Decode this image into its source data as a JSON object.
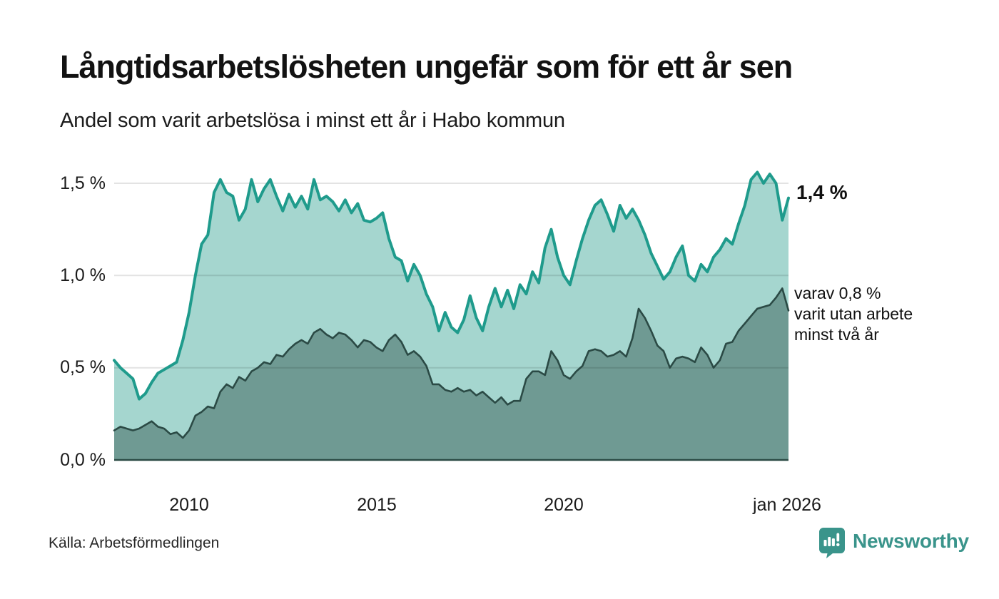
{
  "header": {
    "title": "Långtidsarbetslösheten ungefär som för ett år sen",
    "subtitle": "Andel som varit arbetslösa i minst ett år i Habo kommun"
  },
  "annotations": {
    "latest_total": "1,4 %",
    "two_year_lines": [
      "varav 0,8 %",
      "varit utan arbete",
      "minst två år"
    ]
  },
  "footer": {
    "source": "Källa: Arbetsförmedlingen",
    "brand": "Newsworthy"
  },
  "colors": {
    "one_year_line": "#1f9b8c",
    "one_year_fill": "#a5d6cf",
    "two_year_line": "#2b4a45",
    "two_year_fill": "#6f9a93",
    "grid": "rgba(0,0,0,0.11)",
    "axis": "#2b4a45",
    "brand": "#3a948b",
    "text": "#1a1a1a"
  },
  "chart_data": {
    "type": "area",
    "title": "Långtidsarbetslösheten ungefär som för ett år sen",
    "subtitle": "Andel som varit arbetslösa i minst ett år i Habo kommun",
    "source": "Arbetsförmedlingen",
    "x_unit": "decimal_year",
    "x_start": 2008.0,
    "x_end": 2026.0,
    "x_step": 0.1666667,
    "xlim": [
      2008,
      2026
    ],
    "ylim": [
      0,
      1.6
    ],
    "grid": true,
    "legend_position": "right-annotations",
    "x_ticks": [
      {
        "x": 2010,
        "label": "2010"
      },
      {
        "x": 2015,
        "label": "2015"
      },
      {
        "x": 2020,
        "label": "2020"
      },
      {
        "x": 2026,
        "label": "jan 2026"
      }
    ],
    "y_ticks": [
      {
        "y": 0.0,
        "label": "0,0 %"
      },
      {
        "y": 0.5,
        "label": "0,5 %"
      },
      {
        "y": 1.0,
        "label": "1,0 %"
      },
      {
        "y": 1.5,
        "label": "1,5 %"
      }
    ],
    "series": [
      {
        "name": "Andel arbetslösa minst ett år",
        "latest_value": 1.4,
        "latest_label": "1,4 %",
        "values": [
          0.54,
          0.5,
          0.47,
          0.44,
          0.33,
          0.36,
          0.42,
          0.47,
          0.49,
          0.51,
          0.53,
          0.65,
          0.8,
          1.0,
          1.17,
          1.22,
          1.45,
          1.52,
          1.45,
          1.43,
          1.3,
          1.36,
          1.52,
          1.4,
          1.47,
          1.52,
          1.43,
          1.35,
          1.44,
          1.37,
          1.43,
          1.36,
          1.52,
          1.41,
          1.43,
          1.4,
          1.35,
          1.41,
          1.34,
          1.39,
          1.3,
          1.29,
          1.31,
          1.34,
          1.2,
          1.1,
          1.08,
          0.97,
          1.06,
          1.0,
          0.9,
          0.83,
          0.7,
          0.8,
          0.72,
          0.69,
          0.76,
          0.89,
          0.77,
          0.7,
          0.83,
          0.93,
          0.83,
          0.92,
          0.82,
          0.95,
          0.9,
          1.02,
          0.96,
          1.15,
          1.25,
          1.1,
          1.0,
          0.95,
          1.08,
          1.2,
          1.3,
          1.38,
          1.41,
          1.33,
          1.24,
          1.38,
          1.31,
          1.36,
          1.3,
          1.22,
          1.12,
          1.05,
          0.98,
          1.02,
          1.1,
          1.16,
          1.0,
          0.97,
          1.06,
          1.02,
          1.1,
          1.14,
          1.2,
          1.17,
          1.28,
          1.38,
          1.52,
          1.56,
          1.5,
          1.55,
          1.5,
          1.3,
          1.42
        ]
      },
      {
        "name": "varav utan arbete minst två år",
        "latest_value": 0.8,
        "latest_label": "varav 0,8 % varit utan arbete minst två år",
        "values": [
          0.16,
          0.18,
          0.17,
          0.16,
          0.17,
          0.19,
          0.21,
          0.18,
          0.17,
          0.14,
          0.15,
          0.12,
          0.16,
          0.24,
          0.26,
          0.29,
          0.28,
          0.37,
          0.41,
          0.39,
          0.45,
          0.43,
          0.48,
          0.5,
          0.53,
          0.52,
          0.57,
          0.56,
          0.6,
          0.63,
          0.65,
          0.63,
          0.69,
          0.71,
          0.68,
          0.66,
          0.69,
          0.68,
          0.65,
          0.61,
          0.65,
          0.64,
          0.61,
          0.59,
          0.65,
          0.68,
          0.64,
          0.57,
          0.59,
          0.56,
          0.51,
          0.41,
          0.41,
          0.38,
          0.37,
          0.39,
          0.37,
          0.38,
          0.35,
          0.37,
          0.34,
          0.31,
          0.34,
          0.3,
          0.32,
          0.32,
          0.44,
          0.48,
          0.48,
          0.46,
          0.59,
          0.54,
          0.46,
          0.44,
          0.48,
          0.51,
          0.59,
          0.6,
          0.59,
          0.56,
          0.57,
          0.59,
          0.56,
          0.66,
          0.82,
          0.77,
          0.7,
          0.62,
          0.59,
          0.5,
          0.55,
          0.56,
          0.55,
          0.53,
          0.61,
          0.57,
          0.5,
          0.54,
          0.63,
          0.64,
          0.7,
          0.74,
          0.78,
          0.82,
          0.83,
          0.84,
          0.88,
          0.93,
          0.81
        ]
      }
    ]
  }
}
